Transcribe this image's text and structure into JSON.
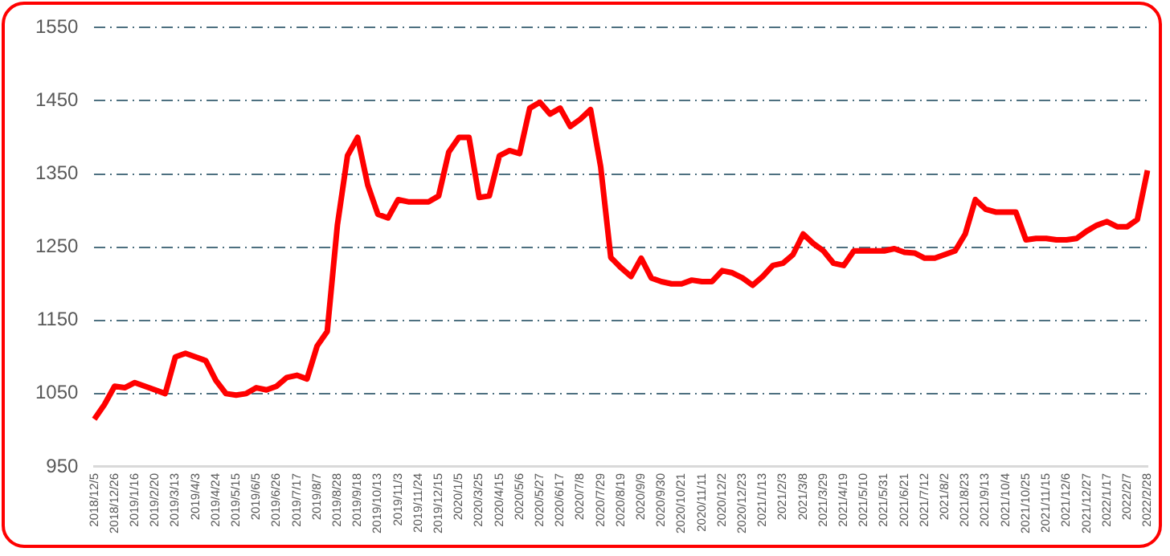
{
  "chart_data": {
    "type": "line",
    "categories": [
      "2018/12/5",
      null,
      "2018/12/26",
      null,
      "2019/1/16",
      null,
      "2019/2/20",
      null,
      "2019/3/13",
      null,
      "2019/4/3",
      null,
      "2019/4/24",
      null,
      "2019/5/15",
      null,
      "2019/6/5",
      null,
      "2019/6/26",
      null,
      "2019/7/17",
      null,
      "2019/8/7",
      null,
      "2019/8/28",
      null,
      "2019/9/18",
      null,
      "2019/10/13",
      null,
      "2019/11/3",
      null,
      "2019/11/24",
      null,
      "2019/12/15",
      null,
      "2020/1/5",
      null,
      "2020/3/25",
      null,
      "2020/4/15",
      null,
      "2020/5/6",
      null,
      "2020/5/27",
      null,
      "2020/6/17",
      null,
      "2020/7/8",
      null,
      "2020/7/29",
      null,
      "2020/8/19",
      null,
      "2020/9/9",
      null,
      "2020/9/30",
      null,
      "2020/10/21",
      null,
      "2020/11/11",
      null,
      "2020/12/2",
      null,
      "2020/12/23",
      null,
      "2021/1/13",
      null,
      "2021/2/3",
      null,
      "2021/3/8",
      null,
      "2021/3/29",
      null,
      "2021/4/19",
      null,
      "2021/5/10",
      null,
      "2021/5/31",
      null,
      "2021/6/21",
      null,
      "2021/7/12",
      null,
      "2021/8/2",
      null,
      "2021/8/23",
      null,
      "2021/9/13",
      null,
      "2021/10/4",
      null,
      "2021/10/25",
      null,
      "2021/11/15",
      null,
      "2021/12/6",
      null,
      "2021/12/27",
      null,
      "2022/1/17",
      null,
      "2022/2/7",
      null,
      "2022/2/28"
    ],
    "series": [
      {
        "color": "#ff0000",
        "values": [
          1015,
          1035,
          1060,
          1058,
          1065,
          1060,
          1055,
          1050,
          1100,
          1105,
          1100,
          1095,
          1068,
          1050,
          1048,
          1050,
          1058,
          1055,
          1060,
          1072,
          1075,
          1070,
          1115,
          1135,
          1280,
          1375,
          1400,
          1335,
          1295,
          1290,
          1315,
          1312,
          1312,
          1312,
          1320,
          1380,
          1400,
          1400,
          1318,
          1320,
          1375,
          1382,
          1378,
          1440,
          1448,
          1432,
          1440,
          1415,
          1425,
          1438,
          1360,
          1236,
          1222,
          1210,
          1235,
          1208,
          1203,
          1200,
          1200,
          1205,
          1203,
          1203,
          1218,
          1215,
          1208,
          1198,
          1210,
          1225,
          1228,
          1240,
          1268,
          1255,
          1245,
          1228,
          1225,
          1245,
          1245,
          1245,
          1245,
          1248,
          1243,
          1242,
          1235,
          1235,
          1240,
          1245,
          1268,
          1315,
          1302,
          1298,
          1298,
          1298,
          1260,
          1262,
          1262,
          1260,
          1260,
          1262,
          1272,
          1280,
          1285,
          1278,
          1278,
          1288,
          1355
        ]
      }
    ],
    "ylim": [
      950,
      1550
    ],
    "yticks": [
      950,
      1050,
      1150,
      1250,
      1350,
      1450,
      1550
    ],
    "grid": "y",
    "legend": false,
    "marker": "none",
    "line_style": "solid"
  }
}
